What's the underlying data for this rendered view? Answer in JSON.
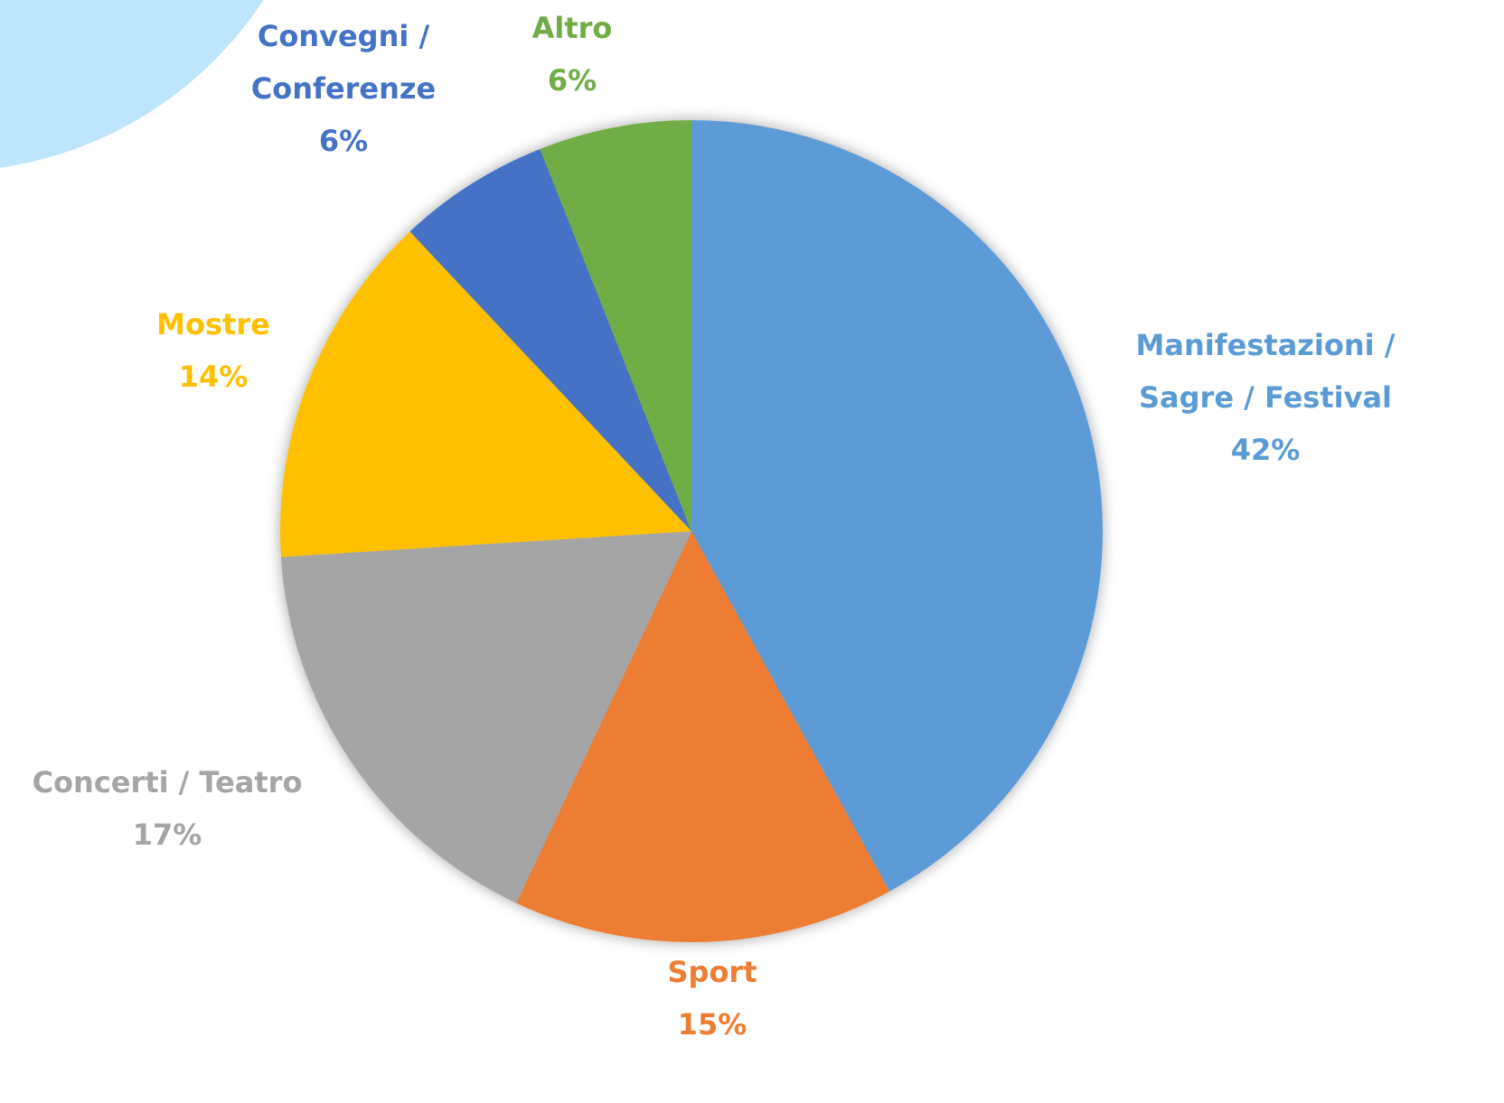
{
  "chart_data": {
    "type": "pie",
    "categories": [
      "Manifestazioni / Sagre / Festival",
      "Sport",
      "Concerti / Teatro",
      "Mostre",
      "Convegni / Conferenze",
      "Altro"
    ],
    "values": [
      42,
      15,
      17,
      14,
      6,
      6
    ],
    "value_labels": [
      "42%",
      "15%",
      "17%",
      "14%",
      "6%",
      "6%"
    ],
    "colors": [
      "#5b9bd5",
      "#ed7d31",
      "#a5a5a5",
      "#ffc000",
      "#4472c4",
      "#70ad47"
    ]
  }
}
